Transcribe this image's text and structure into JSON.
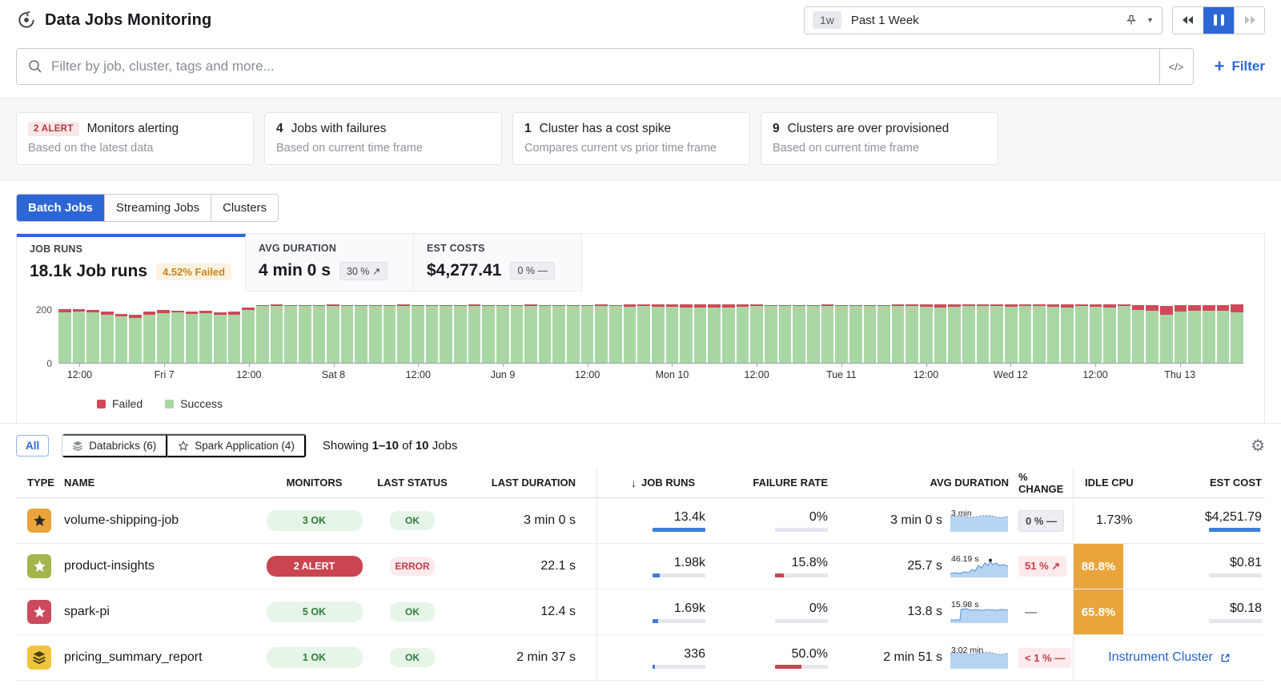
{
  "header": {
    "title": "Data Jobs Monitoring",
    "time_range": {
      "badge": "1w",
      "label": "Past 1 Week"
    }
  },
  "filter_bar": {
    "placeholder": "Filter by job, cluster, tags and more...",
    "code_button": "</>",
    "filter_button": "Filter"
  },
  "insight_cards": [
    {
      "badge": "2 ALERT",
      "title": "Monitors alerting",
      "subtitle": "Based on the latest data"
    },
    {
      "count": "4",
      "title": "Jobs with failures",
      "subtitle": "Based on current time frame"
    },
    {
      "count": "1",
      "title": "Cluster has a cost spike",
      "subtitle": "Compares current vs prior time frame"
    },
    {
      "count": "9",
      "title": "Clusters are over provisioned",
      "subtitle": "Based on current time frame"
    }
  ],
  "tabs": [
    {
      "label": "Batch Jobs",
      "active": true
    },
    {
      "label": "Streaming Jobs",
      "active": false
    },
    {
      "label": "Clusters",
      "active": false
    }
  ],
  "stats": [
    {
      "label": "JOB RUNS",
      "value": "18.1k Job runs",
      "badge": "4.52% Failed",
      "badge_kind": "warn",
      "active": true
    },
    {
      "label": "AVG DURATION",
      "value": "4 min 0 s",
      "badge": "30 % ↗",
      "badge_kind": "gray",
      "active": false
    },
    {
      "label": "EST COSTS",
      "value": "$4,277.41",
      "badge": "0 % —",
      "badge_kind": "gray",
      "active": false
    }
  ],
  "chart_data": {
    "type": "bar",
    "stacked": true,
    "title": "Job runs over time",
    "xlabel": "",
    "ylabel": "",
    "ylim": [
      0,
      200
    ],
    "yticks": [
      0,
      200
    ],
    "grid": false,
    "legend_position": "bottom-left",
    "legend": [
      {
        "label": "Failed",
        "color": "#d0495a"
      },
      {
        "label": "Success",
        "color": "#a9d7a4"
      }
    ],
    "x_tick_indices": [
      1,
      7,
      13,
      19,
      25,
      31,
      37,
      43,
      49,
      55,
      61,
      67,
      73,
      79
    ],
    "x_tick_labels": [
      "12:00",
      "Fri 7",
      "12:00",
      "Sat 8",
      "12:00",
      "Jun 9",
      "12:00",
      "Mon 10",
      "12:00",
      "Tue 11",
      "12:00",
      "Wed 12",
      "12:00",
      "Thu 13"
    ],
    "series": [
      {
        "name": "Success",
        "color": "#a9d7a4",
        "values": [
          188,
          190,
          186,
          178,
          172,
          168,
          180,
          184,
          186,
          182,
          184,
          180,
          178,
          196,
          210,
          212,
          210,
          211,
          210,
          212,
          210,
          210,
          211,
          210,
          212,
          210,
          210,
          211,
          210,
          212,
          210,
          211,
          210,
          212,
          210,
          210,
          211,
          210,
          212,
          210,
          209,
          210,
          208,
          207,
          205,
          206,
          204,
          206,
          208,
          210,
          210,
          211,
          210,
          210,
          212,
          210,
          211,
          210,
          210,
          212,
          210,
          208,
          206,
          208,
          210,
          211,
          210,
          209,
          210,
          211,
          208,
          206,
          212,
          208,
          206,
          210,
          196,
          192,
          180,
          190,
          192,
          192,
          194,
          188
        ]
      },
      {
        "name": "Failed",
        "color": "#d0495a",
        "values": [
          10,
          8,
          10,
          12,
          10,
          12,
          10,
          12,
          8,
          8,
          10,
          8,
          12,
          10,
          5,
          4,
          5,
          4,
          5,
          4,
          5,
          5,
          4,
          5,
          4,
          5,
          5,
          4,
          5,
          4,
          5,
          4,
          5,
          4,
          5,
          5,
          4,
          5,
          4,
          5,
          8,
          7,
          9,
          10,
          12,
          10,
          12,
          10,
          8,
          6,
          5,
          4,
          5,
          5,
          4,
          5,
          4,
          5,
          5,
          4,
          6,
          8,
          10,
          8,
          6,
          5,
          6,
          7,
          6,
          5,
          10,
          12,
          6,
          10,
          12,
          8,
          18,
          22,
          30,
          24,
          22,
          22,
          20,
          28
        ]
      }
    ]
  },
  "list_controls": {
    "chips": [
      {
        "label": "All",
        "active": true,
        "icon": null
      },
      {
        "label": "Databricks (6)",
        "active": false,
        "icon": "databricks-icon"
      },
      {
        "label": "Spark Application (4)",
        "active": false,
        "icon": "spark-icon"
      }
    ],
    "showing": {
      "prefix": "Showing",
      "range": "1–10",
      "of": "of",
      "total": "10",
      "suffix": "Jobs"
    }
  },
  "table": {
    "columns": [
      "TYPE",
      "NAME",
      "MONITORS",
      "LAST STATUS",
      "LAST DURATION",
      "JOB RUNS",
      "FAILURE RATE",
      "AVG DURATION",
      "% CHANGE",
      "IDLE CPU",
      "EST COST"
    ],
    "sort_column": "JOB RUNS",
    "rows": [
      {
        "icon": {
          "kind": "spark",
          "bg": "#e9a43c",
          "fg": "#2b2b2b"
        },
        "name": "volume-shipping-job",
        "monitors": {
          "text": "3 OK",
          "kind": "ok"
        },
        "status": {
          "text": "OK",
          "kind": "ok"
        },
        "last_duration": "3 min 0 s",
        "job_runs": {
          "text": "13.4k",
          "pct": 100
        },
        "failure_rate": {
          "text": "0%",
          "pct": 0
        },
        "avg_duration": {
          "text": "3 min 0 s",
          "spark_label": "3 min",
          "spark_kind": "full",
          "dot": false
        },
        "change": {
          "text": "0 % —",
          "kind": "gray"
        },
        "idle_cpu": {
          "text": "1.73%",
          "highlight": false
        },
        "est_cost": {
          "text": "$4,251.79",
          "pct": 97
        }
      },
      {
        "icon": {
          "kind": "spark",
          "bg": "#a3b54d",
          "fg": "#ffffff"
        },
        "name": "product-insights",
        "monitors": {
          "text": "2 ALERT",
          "kind": "alert"
        },
        "status": {
          "text": "ERROR",
          "kind": "error"
        },
        "last_duration": "22.1 s",
        "job_runs": {
          "text": "1.98k",
          "pct": 13
        },
        "failure_rate": {
          "text": "15.8%",
          "pct": 16
        },
        "avg_duration": {
          "text": "25.7 s",
          "spark_label": "46.19 s",
          "spark_kind": "spiky",
          "dot": true
        },
        "change": {
          "text": "51 % ↗",
          "kind": "bad"
        },
        "idle_cpu": {
          "text": "88.8%",
          "highlight": true
        },
        "est_cost": {
          "text": "$0.81",
          "pct": 0
        }
      },
      {
        "icon": {
          "kind": "spark",
          "bg": "#c94b5d",
          "fg": "#ffffff"
        },
        "name": "spark-pi",
        "monitors": {
          "text": "5 OK",
          "kind": "ok"
        },
        "status": {
          "text": "OK",
          "kind": "ok"
        },
        "last_duration": "12.4 s",
        "job_runs": {
          "text": "1.69k",
          "pct": 11
        },
        "failure_rate": {
          "text": "0%",
          "pct": 0
        },
        "avg_duration": {
          "text": "13.8 s",
          "spark_label": "15.98 s",
          "spark_kind": "step",
          "dot": false
        },
        "change": {
          "text": "—",
          "kind": "plain"
        },
        "idle_cpu": {
          "text": "65.8%",
          "highlight": true
        },
        "est_cost": {
          "text": "$0.18",
          "pct": 0
        }
      },
      {
        "icon": {
          "kind": "databricks",
          "bg": "#f0c53c",
          "fg": "#4a3f17"
        },
        "name": "pricing_summary_report",
        "monitors": {
          "text": "1 OK",
          "kind": "ok"
        },
        "status": {
          "text": "OK",
          "kind": "ok"
        },
        "last_duration": "2 min 37 s",
        "job_runs": {
          "text": "336",
          "pct": 4
        },
        "failure_rate": {
          "text": "50.0%",
          "pct": 50
        },
        "avg_duration": {
          "text": "2 min 51 s",
          "spark_label": "3:02 min",
          "spark_kind": "full",
          "dot": false
        },
        "change": {
          "text": "< 1 % —",
          "kind": "bad"
        },
        "action": {
          "text": "Instrument Cluster"
        }
      }
    ]
  },
  "colors": {
    "accent": "#2d67d6",
    "alert_red": "#ca4452",
    "ok_green": "#2e7d3b",
    "warn_orange": "#c9851e",
    "idle_orange": "#e9a43c",
    "chart_green": "#a9d7a4",
    "chart_red": "#d0495a",
    "bar_blue": "#3d7fd9"
  }
}
